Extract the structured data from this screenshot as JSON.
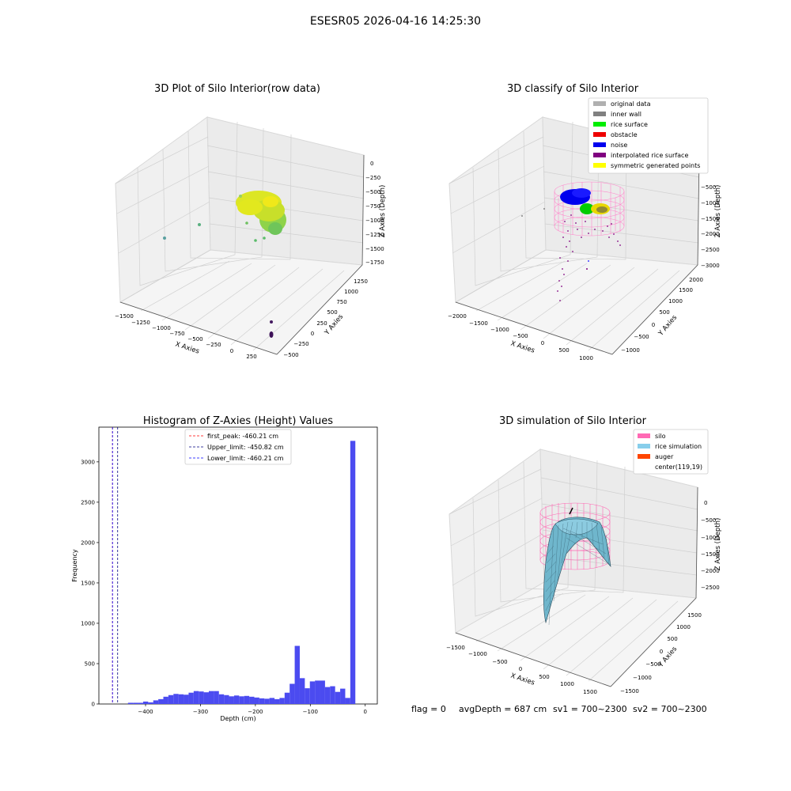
{
  "suptitle": "ESESR05 2026-04-16 14:25:30",
  "panel_tl": {
    "title": "3D Plot of Silo Interior(row data)",
    "xlabel": "X Axies",
    "ylabel": "Y Axies",
    "zlabel": "Z Axies (Depth)",
    "x_ticks": [
      "−1500",
      "−1250",
      "−1000",
      "−750",
      "−500",
      "−250",
      "0",
      "250"
    ],
    "y_ticks": [
      "−500",
      "−250",
      "0",
      "250",
      "500",
      "750",
      "1000",
      "1250"
    ],
    "z_ticks": [
      "0",
      "−250",
      "−500",
      "−750",
      "−1000",
      "−1250",
      "−1500",
      "−1750"
    ]
  },
  "panel_tr": {
    "title": "3D classify of Silo Interior",
    "xlabel": "X Axies",
    "ylabel": "Y Axies",
    "zlabel": "Z Axies (Depth)",
    "x_ticks": [
      "−2000",
      "−1500",
      "−1000",
      "−500",
      "0",
      "500",
      "1000"
    ],
    "y_ticks": [
      "−1000",
      "−500",
      "0",
      "500",
      "1000",
      "1500",
      "2000"
    ],
    "z_ticks": [
      "0",
      "−500",
      "−1000",
      "−1500",
      "−2000",
      "−2500",
      "−3000"
    ],
    "legend": [
      {
        "label": "original data",
        "color": "#b0b0b0"
      },
      {
        "label": "inner wall",
        "color": "#808080"
      },
      {
        "label": "rice surface",
        "color": "#00ee00"
      },
      {
        "label": "obstacle",
        "color": "#ee0000"
      },
      {
        "label": "noise",
        "color": "#0000ee"
      },
      {
        "label": "interpolated rice surface",
        "color": "#800080"
      },
      {
        "label": "symmetric generated points",
        "color": "#ffff00"
      }
    ]
  },
  "panel_br": {
    "title": "3D simulation of Silo Interior",
    "xlabel": "X Axies",
    "ylabel": "Y Axies",
    "zlabel": "Z Axies (Depth)",
    "x_ticks": [
      "−1500",
      "−1000",
      "−500",
      "0",
      "500",
      "1000",
      "1500"
    ],
    "y_ticks": [
      "−1500",
      "−1000",
      "−500",
      "0",
      "500",
      "1000",
      "1500"
    ],
    "z_ticks": [
      "0",
      "−500",
      "−1000",
      "−1500",
      "−2000",
      "−2500"
    ],
    "legend": [
      {
        "label": "silo",
        "color": "#ff69b4"
      },
      {
        "label": "rice simulation",
        "color": "#87ceeb"
      },
      {
        "label": "auger",
        "color": "#ff4500"
      },
      {
        "label": "center(119,19)",
        "color": ""
      }
    ]
  },
  "status_line": {
    "flag": "flag = 0",
    "avg": "avgDepth = 687 cm",
    "sv1": "sv1 = 700~2300",
    "sv2": "sv2 = 700~2300"
  },
  "chart_data": {
    "type": "bar",
    "title": "Histogram of Z-Axies (Height) Values",
    "xlabel": "Depth (cm)",
    "ylabel": "Frequency",
    "xlim": [
      -485,
      22
    ],
    "ylim": [
      0,
      3430
    ],
    "x_ticks": [
      -400,
      -300,
      -200,
      -100,
      0
    ],
    "y_ticks": [
      0,
      500,
      1000,
      1500,
      2000,
      2500,
      3000
    ],
    "bin_width": 9.2,
    "bins_left": [
      -432,
      -422.8,
      -413.6,
      -404.4,
      -395.2,
      -386,
      -376.8,
      -367.6,
      -358.4,
      -349.2,
      -340,
      -330.8,
      -321.6,
      -312.4,
      -303.2,
      -294,
      -284.8,
      -275.6,
      -266.4,
      -257.2,
      -248,
      -238.8,
      -229.6,
      -220.4,
      -211.2,
      -202,
      -192.8,
      -183.6,
      -174.4,
      -165.2,
      -156,
      -146.8,
      -137.6,
      -128.4,
      -119.2,
      -110,
      -100.8,
      -91.6,
      -82.4,
      -73.2,
      -64,
      -54.8,
      -45.6,
      -36.4,
      -27.2,
      -18,
      -8.8
    ],
    "counts": [
      15,
      15,
      15,
      30,
      20,
      45,
      60,
      90,
      110,
      125,
      120,
      115,
      140,
      160,
      155,
      145,
      160,
      160,
      120,
      110,
      95,
      105,
      95,
      100,
      90,
      80,
      70,
      65,
      75,
      60,
      75,
      140,
      250,
      720,
      320,
      195,
      280,
      290,
      290,
      210,
      220,
      150,
      190,
      75,
      3260,
      0,
      0
    ],
    "vlines": [
      {
        "label": "first_peak: -460.21 cm",
        "x": -460.21,
        "color": "#ff0000"
      },
      {
        "label": "Upper_limit: -450.82 cm",
        "x": -450.82,
        "color": "#000080"
      },
      {
        "label": "Lower_limit: -460.21 cm",
        "x": -460.21,
        "color": "#0000ff"
      }
    ],
    "bar_color": "#4b4bf0"
  }
}
